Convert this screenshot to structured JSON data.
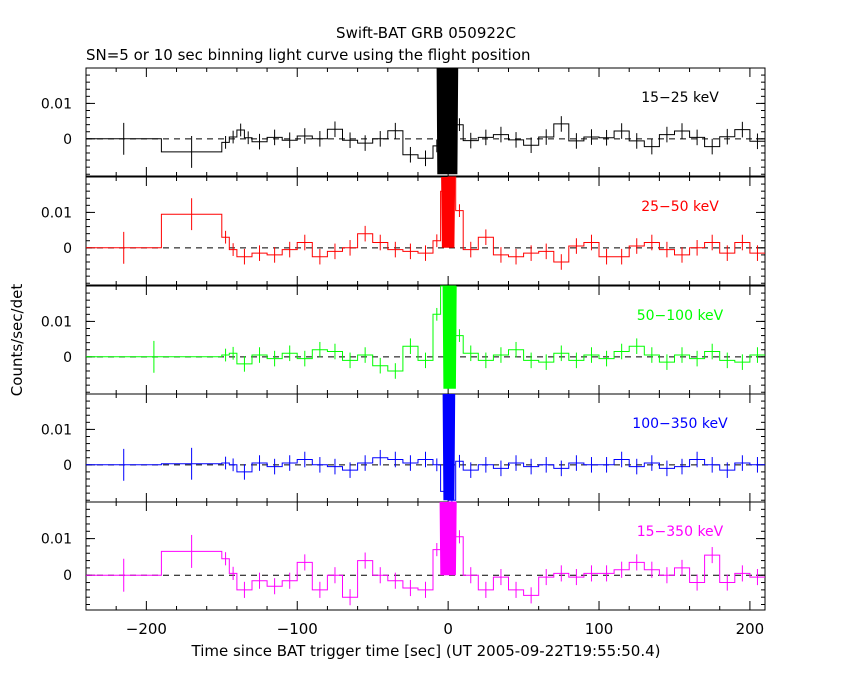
{
  "chart_data": {
    "type": "line",
    "title": "Swift-BAT GRB 050922C",
    "subtitle": "SN=5 or 10 sec binning light curve using the flight position",
    "xlabel": "Time since BAT trigger time [sec] (UT 2005-09-22T19:55:50.4)",
    "ylabel": "Counts/sec/det",
    "xlim": [
      -240,
      210
    ],
    "xticks": [
      -200,
      -100,
      0,
      100,
      200
    ],
    "xtick_labels": [
      "−200",
      "−100",
      "0",
      "100",
      "200"
    ],
    "grid": false,
    "panels": [
      {
        "band": "15-25 keV",
        "label": "15−25 keV",
        "color": "#000000",
        "ylim": [
          -0.0105,
          0.02
        ],
        "yticks": [
          0,
          0.01
        ],
        "ytick_labels": [
          "0",
          "0.01"
        ],
        "steps": [
          [
            -240,
            -190,
            0.0
          ],
          [
            -190,
            -150,
            -0.0037
          ],
          [
            -150,
            -145,
            -0.001
          ],
          [
            -145,
            -140,
            0.0005
          ],
          [
            -140,
            -135,
            0.0025
          ],
          [
            -135,
            -130,
            0.0003
          ],
          [
            -130,
            -120,
            -0.0008
          ],
          [
            -120,
            -110,
            0.0004
          ],
          [
            -110,
            -100,
            -0.0004
          ],
          [
            -100,
            -90,
            0.0008
          ],
          [
            -90,
            -80,
            0.0
          ],
          [
            -80,
            -70,
            0.0027
          ],
          [
            -70,
            -60,
            -0.0004
          ],
          [
            -60,
            -50,
            -0.0012
          ],
          [
            -50,
            -40,
            0.0
          ],
          [
            -40,
            -30,
            0.0023
          ],
          [
            -30,
            -20,
            -0.0045
          ],
          [
            -20,
            -10,
            -0.0055
          ],
          [
            -10,
            -5,
            -0.002
          ],
          [
            -5,
            0,
            0.02
          ],
          [
            0,
            5,
            0.02
          ],
          [
            5,
            10,
            0.004
          ],
          [
            10,
            20,
            -0.0005
          ],
          [
            20,
            30,
            0.0004
          ],
          [
            30,
            40,
            0.0012
          ],
          [
            40,
            50,
            -0.0003
          ],
          [
            50,
            60,
            -0.0018
          ],
          [
            60,
            70,
            0.0005
          ],
          [
            70,
            80,
            0.0042
          ],
          [
            80,
            90,
            -0.0006
          ],
          [
            90,
            100,
            0.0005
          ],
          [
            100,
            110,
            0.0003
          ],
          [
            110,
            120,
            0.0022
          ],
          [
            120,
            130,
            -0.0006
          ],
          [
            130,
            140,
            -0.0022
          ],
          [
            140,
            150,
            0.0012
          ],
          [
            150,
            160,
            0.0022
          ],
          [
            160,
            170,
            0.0004
          ],
          [
            170,
            180,
            -0.0022
          ],
          [
            180,
            190,
            0.0006
          ],
          [
            190,
            200,
            0.0026
          ],
          [
            200,
            210,
            -0.0007
          ]
        ],
        "peak": {
          "x": [
            -7,
            6
          ],
          "min": -0.01,
          "max": 0.02
        }
      },
      {
        "band": "25-50 keV",
        "label": "25−50 keV",
        "color": "#ff0000",
        "ylim": [
          -0.0105,
          0.02
        ],
        "yticks": [
          0,
          0.01
        ],
        "ytick_labels": [
          "0",
          "0.01"
        ],
        "steps": [
          [
            -240,
            -190,
            0.0
          ],
          [
            -190,
            -150,
            0.0095
          ],
          [
            -150,
            -145,
            0.003
          ],
          [
            -145,
            -140,
            -0.0005
          ],
          [
            -140,
            -130,
            -0.0025
          ],
          [
            -130,
            -120,
            -0.0015
          ],
          [
            -120,
            -110,
            -0.002
          ],
          [
            -110,
            -100,
            -0.0005
          ],
          [
            -100,
            -90,
            0.0015
          ],
          [
            -90,
            -80,
            -0.0025
          ],
          [
            -80,
            -70,
            -0.001
          ],
          [
            -70,
            -60,
            0.0
          ],
          [
            -60,
            -50,
            0.004
          ],
          [
            -50,
            -40,
            0.0015
          ],
          [
            -40,
            -30,
            -0.0005
          ],
          [
            -30,
            -20,
            -0.001
          ],
          [
            -20,
            -10,
            -0.0015
          ],
          [
            -10,
            -5,
            0.002
          ],
          [
            -5,
            0,
            0.016
          ],
          [
            0,
            5,
            0.02
          ],
          [
            5,
            10,
            0.0105
          ],
          [
            10,
            20,
            -0.0005
          ],
          [
            20,
            30,
            0.003
          ],
          [
            30,
            40,
            -0.002
          ],
          [
            40,
            50,
            -0.0025
          ],
          [
            50,
            60,
            -0.0015
          ],
          [
            60,
            70,
            -0.001
          ],
          [
            70,
            80,
            -0.004
          ],
          [
            80,
            90,
            0.0005
          ],
          [
            90,
            100,
            0.0015
          ],
          [
            100,
            110,
            -0.0025
          ],
          [
            110,
            120,
            -0.0025
          ],
          [
            120,
            130,
            0.0005
          ],
          [
            130,
            140,
            0.0015
          ],
          [
            140,
            150,
            -0.0005
          ],
          [
            150,
            160,
            -0.002
          ],
          [
            160,
            170,
            0.0
          ],
          [
            170,
            180,
            0.0015
          ],
          [
            180,
            190,
            -0.0015
          ],
          [
            190,
            200,
            0.0015
          ],
          [
            200,
            210,
            -0.0015
          ]
        ],
        "peak": {
          "x": [
            -4,
            4
          ],
          "min": 0.0,
          "max": 0.02
        }
      },
      {
        "band": "50-100 keV",
        "label": "50−100 keV",
        "color": "#00ff00",
        "ylim": [
          -0.0105,
          0.02
        ],
        "yticks": [
          0,
          0.01
        ],
        "ytick_labels": [
          "0",
          "0.01"
        ],
        "steps": [
          [
            -240,
            -150,
            0.0
          ],
          [
            -150,
            -145,
            0.0005
          ],
          [
            -145,
            -140,
            0.001
          ],
          [
            -140,
            -130,
            -0.002
          ],
          [
            -130,
            -120,
            0.0005
          ],
          [
            -120,
            -110,
            -0.0005
          ],
          [
            -110,
            -100,
            0.001
          ],
          [
            -100,
            -90,
            -0.0005
          ],
          [
            -90,
            -80,
            0.002
          ],
          [
            -80,
            -70,
            0.0015
          ],
          [
            -70,
            -60,
            -0.001
          ],
          [
            -60,
            -50,
            0.0005
          ],
          [
            -50,
            -40,
            -0.0025
          ],
          [
            -40,
            -30,
            -0.004
          ],
          [
            -30,
            -20,
            0.003
          ],
          [
            -20,
            -10,
            -0.001
          ],
          [
            -10,
            -5,
            0.012
          ],
          [
            -5,
            0,
            0.02
          ],
          [
            0,
            5,
            0.02
          ],
          [
            5,
            10,
            0.006
          ],
          [
            10,
            20,
            0.001
          ],
          [
            20,
            30,
            -0.001
          ],
          [
            30,
            40,
            0.0005
          ],
          [
            40,
            50,
            0.002
          ],
          [
            50,
            60,
            -0.001
          ],
          [
            60,
            70,
            -0.0015
          ],
          [
            70,
            80,
            0.001
          ],
          [
            80,
            90,
            -0.001
          ],
          [
            90,
            100,
            0.0005
          ],
          [
            100,
            110,
            -0.0005
          ],
          [
            110,
            120,
            0.0015
          ],
          [
            120,
            130,
            0.003
          ],
          [
            130,
            140,
            0.0005
          ],
          [
            140,
            150,
            -0.0015
          ],
          [
            150,
            160,
            0.0005
          ],
          [
            160,
            170,
            -0.0005
          ],
          [
            170,
            180,
            0.0015
          ],
          [
            180,
            190,
            -0.001
          ],
          [
            190,
            200,
            -0.0015
          ],
          [
            200,
            210,
            0.0005
          ]
        ],
        "peak": {
          "x": [
            -3,
            5
          ],
          "min": -0.009,
          "max": 0.02
        }
      },
      {
        "band": "100-350 keV",
        "label": "100−350 keV",
        "color": "#0000ff",
        "ylim": [
          -0.0105,
          0.02
        ],
        "yticks": [
          0,
          0.01
        ],
        "ytick_labels": [
          "0",
          "0.01"
        ],
        "steps": [
          [
            -240,
            -190,
            0.0
          ],
          [
            -190,
            -150,
            0.0003
          ],
          [
            -150,
            -145,
            0.0005
          ],
          [
            -145,
            -140,
            0.0
          ],
          [
            -140,
            -130,
            -0.002
          ],
          [
            -130,
            -120,
            0.0005
          ],
          [
            -120,
            -110,
            -0.0005
          ],
          [
            -110,
            -100,
            0.0005
          ],
          [
            -100,
            -90,
            0.0015
          ],
          [
            -90,
            -80,
            0.0
          ],
          [
            -80,
            -70,
            -0.0005
          ],
          [
            -70,
            -60,
            -0.0015
          ],
          [
            -60,
            -50,
            0.0005
          ],
          [
            -50,
            -40,
            0.002
          ],
          [
            -40,
            -30,
            0.0015
          ],
          [
            -30,
            -20,
            0.0005
          ],
          [
            -20,
            -10,
            0.0015
          ],
          [
            -10,
            -5,
            0.0
          ],
          [
            -5,
            0,
            -0.0075
          ],
          [
            0,
            5,
            -0.01
          ],
          [
            5,
            10,
            0.001
          ],
          [
            10,
            20,
            -0.0015
          ],
          [
            20,
            30,
            0.0
          ],
          [
            30,
            40,
            -0.001
          ],
          [
            40,
            50,
            0.0005
          ],
          [
            50,
            60,
            -0.0005
          ],
          [
            60,
            70,
            0.0
          ],
          [
            70,
            80,
            -0.001
          ],
          [
            80,
            90,
            0.0005
          ],
          [
            90,
            100,
            0.0
          ],
          [
            100,
            110,
            0.0
          ],
          [
            110,
            120,
            0.0015
          ],
          [
            120,
            130,
            -0.0005
          ],
          [
            130,
            140,
            0.0005
          ],
          [
            140,
            150,
            -0.001
          ],
          [
            150,
            160,
            -0.0005
          ],
          [
            160,
            170,
            0.0015
          ],
          [
            170,
            180,
            0.0
          ],
          [
            180,
            190,
            -0.0015
          ],
          [
            190,
            200,
            0.0005
          ],
          [
            200,
            210,
            0.0
          ]
        ],
        "peak": {
          "x": [
            -3,
            4
          ],
          "min": -0.01,
          "max": 0.02
        }
      },
      {
        "band": "15-350 keV",
        "label": "15−350 keV",
        "color": "#ff00ff",
        "ylim": [
          -0.0095,
          0.02
        ],
        "yticks": [
          0,
          0.01
        ],
        "ytick_labels": [
          "0",
          "0.01"
        ],
        "steps": [
          [
            -240,
            -190,
            0.0
          ],
          [
            -190,
            -150,
            0.0065
          ],
          [
            -150,
            -145,
            0.0045
          ],
          [
            -145,
            -140,
            0.0005
          ],
          [
            -140,
            -130,
            -0.004
          ],
          [
            -130,
            -120,
            -0.0015
          ],
          [
            -120,
            -110,
            -0.003
          ],
          [
            -110,
            -100,
            -0.0015
          ],
          [
            -100,
            -90,
            0.0035
          ],
          [
            -90,
            -80,
            -0.004
          ],
          [
            -80,
            -70,
            0.0
          ],
          [
            -70,
            -60,
            -0.006
          ],
          [
            -60,
            -50,
            0.004
          ],
          [
            -50,
            -40,
            0.0
          ],
          [
            -40,
            -30,
            -0.0015
          ],
          [
            -30,
            -20,
            -0.0035
          ],
          [
            -20,
            -10,
            -0.004
          ],
          [
            -10,
            -5,
            0.007
          ],
          [
            -5,
            0,
            0.018
          ],
          [
            0,
            5,
            0.02
          ],
          [
            5,
            10,
            0.0105
          ],
          [
            10,
            20,
            0.0
          ],
          [
            20,
            30,
            -0.004
          ],
          [
            30,
            40,
            -0.0005
          ],
          [
            40,
            50,
            -0.004
          ],
          [
            50,
            60,
            -0.0055
          ],
          [
            60,
            70,
            -0.0005
          ],
          [
            70,
            80,
            0.0005
          ],
          [
            80,
            90,
            -0.0005
          ],
          [
            90,
            100,
            0.0005
          ],
          [
            100,
            110,
            0.0005
          ],
          [
            110,
            120,
            0.0015
          ],
          [
            120,
            130,
            0.0035
          ],
          [
            130,
            140,
            0.0015
          ],
          [
            140,
            150,
            0.0
          ],
          [
            150,
            160,
            0.002
          ],
          [
            160,
            170,
            -0.002
          ],
          [
            170,
            180,
            0.0055
          ],
          [
            180,
            190,
            -0.002
          ],
          [
            190,
            200,
            0.0005
          ],
          [
            200,
            210,
            -0.0005
          ]
        ],
        "peak": {
          "x": [
            -5,
            5
          ],
          "min": 0.0,
          "max": 0.02
        }
      }
    ]
  }
}
